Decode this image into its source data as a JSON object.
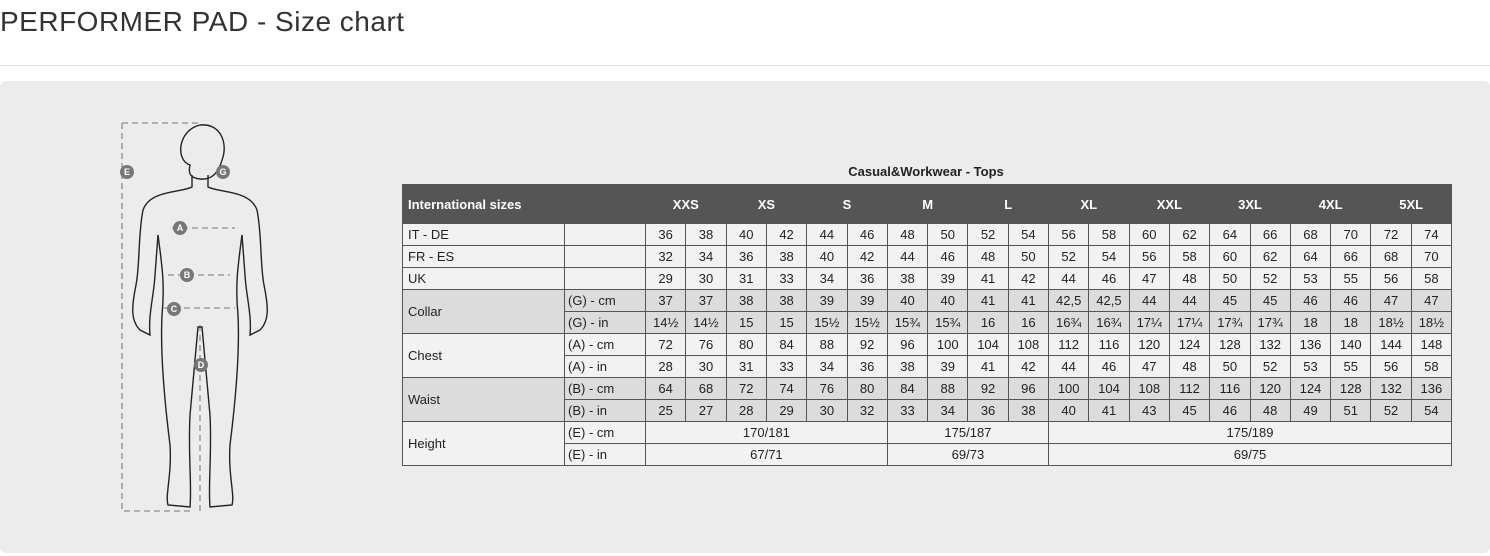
{
  "page_title": "PERFORMER PAD - Size chart",
  "figure": {
    "markers": [
      "E",
      "G",
      "A",
      "B",
      "C",
      "D"
    ]
  },
  "table": {
    "caption": "Casual&Workwear - Tops",
    "header_label": "International sizes",
    "sizes": [
      "XXS",
      "XS",
      "S",
      "M",
      "L",
      "XL",
      "XXL",
      "3XL",
      "4XL",
      "5XL"
    ],
    "rows": [
      {
        "label": "IT - DE",
        "unit": "",
        "shade": false,
        "values": [
          "36",
          "38",
          "40",
          "42",
          "44",
          "46",
          "48",
          "50",
          "52",
          "54",
          "56",
          "58",
          "60",
          "62",
          "64",
          "66",
          "68",
          "70",
          "72",
          "74"
        ]
      },
      {
        "label": "FR - ES",
        "unit": "",
        "shade": false,
        "values": [
          "32",
          "34",
          "36",
          "38",
          "40",
          "42",
          "44",
          "46",
          "48",
          "50",
          "52",
          "54",
          "56",
          "58",
          "60",
          "62",
          "64",
          "66",
          "68",
          "70"
        ]
      },
      {
        "label": "UK",
        "unit": "",
        "shade": false,
        "values": [
          "29",
          "30",
          "31",
          "33",
          "34",
          "36",
          "38",
          "39",
          "41",
          "42",
          "44",
          "46",
          "47",
          "48",
          "50",
          "52",
          "53",
          "55",
          "56",
          "58"
        ]
      },
      {
        "label": "Collar",
        "unit": "(G) - cm",
        "shade": true,
        "values": [
          "37",
          "37",
          "38",
          "38",
          "39",
          "39",
          "40",
          "40",
          "41",
          "41",
          "42,5",
          "42,5",
          "44",
          "44",
          "45",
          "45",
          "46",
          "46",
          "47",
          "47"
        ]
      },
      {
        "label": "",
        "unit": "(G)  - in",
        "shade": true,
        "values": [
          "14½",
          "14½",
          "15",
          "15",
          "15½",
          "15½",
          "15¾",
          "15¾",
          "16",
          "16",
          "16¾",
          "16¾",
          "17¼",
          "17¼",
          "17¾",
          "17¾",
          "18",
          "18",
          "18½",
          "18½"
        ]
      },
      {
        "label": "Chest",
        "unit": "(A) - cm",
        "shade": false,
        "values": [
          "72",
          "76",
          "80",
          "84",
          "88",
          "92",
          "96",
          "100",
          "104",
          "108",
          "112",
          "116",
          "120",
          "124",
          "128",
          "132",
          "136",
          "140",
          "144",
          "148"
        ]
      },
      {
        "label": "",
        "unit": "(A) - in",
        "shade": false,
        "values": [
          "28",
          "30",
          "31",
          "33",
          "34",
          "36",
          "38",
          "39",
          "41",
          "42",
          "44",
          "46",
          "47",
          "48",
          "50",
          "52",
          "53",
          "55",
          "56",
          "58"
        ]
      },
      {
        "label": "Waist",
        "unit": "(B) - cm",
        "shade": true,
        "values": [
          "64",
          "68",
          "72",
          "74",
          "76",
          "80",
          "84",
          "88",
          "92",
          "96",
          "100",
          "104",
          "108",
          "112",
          "116",
          "120",
          "124",
          "128",
          "132",
          "136"
        ]
      },
      {
        "label": "",
        "unit": "(B) - in",
        "shade": true,
        "values": [
          "25",
          "27",
          "28",
          "29",
          "30",
          "32",
          "33",
          "34",
          "36",
          "38",
          "40",
          "41",
          "43",
          "45",
          "46",
          "48",
          "49",
          "51",
          "52",
          "54"
        ]
      },
      {
        "label": "Height",
        "unit": "(E) - cm",
        "shade": false,
        "spans": [
          {
            "value": "170/181",
            "sizes": [
              "XXS",
              "XS",
              "S"
            ]
          },
          {
            "value": "175/187",
            "sizes": [
              "M",
              "L"
            ]
          },
          {
            "value": "175/189",
            "sizes": [
              "XL",
              "XXL",
              "3XL",
              "4XL",
              "5XL"
            ]
          }
        ]
      },
      {
        "label": "",
        "unit": "(E) - in",
        "shade": false,
        "spans": [
          {
            "value": "67/71",
            "sizes": [
              "XXS",
              "XS",
              "S"
            ]
          },
          {
            "value": "69/73",
            "sizes": [
              "M",
              "L"
            ]
          },
          {
            "value": "69/75",
            "sizes": [
              "XL",
              "XXL",
              "3XL",
              "4XL",
              "5XL"
            ]
          }
        ]
      }
    ]
  }
}
